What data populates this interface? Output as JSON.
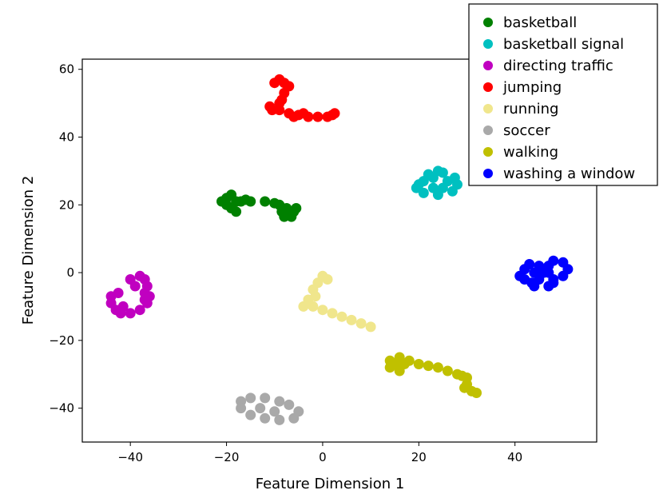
{
  "chart_data": {
    "type": "scatter",
    "xlabel": "Feature Dimension 1",
    "ylabel": "Feature Dimension 2",
    "xlim": [
      -50,
      57
    ],
    "ylim": [
      -50,
      63
    ],
    "xticks": [
      -40,
      -20,
      0,
      20,
      40
    ],
    "yticks": [
      -40,
      -20,
      0,
      20,
      40,
      60
    ],
    "xtick_labels": [
      "−40",
      "−20",
      "0",
      "20",
      "40"
    ],
    "ytick_labels": [
      "−40",
      "−20",
      "0",
      "20",
      "40",
      "60"
    ],
    "grid": false,
    "legend_position": "top-right",
    "series": [
      {
        "name": "basketball",
        "color": "#008000",
        "points": [
          [
            -21,
            21
          ],
          [
            -20,
            22
          ],
          [
            -19,
            23
          ],
          [
            -18,
            21
          ],
          [
            -19,
            19
          ],
          [
            -18,
            18
          ],
          [
            -17,
            21
          ],
          [
            -15,
            21
          ],
          [
            -12,
            21
          ],
          [
            -10,
            20.5
          ],
          [
            -9,
            20
          ],
          [
            -8.5,
            18
          ],
          [
            -7,
            17
          ],
          [
            -6,
            18
          ],
          [
            -5.5,
            19
          ],
          [
            -7.5,
            19
          ],
          [
            -8,
            16.5
          ],
          [
            -6.5,
            16.5
          ],
          [
            -20,
            20
          ],
          [
            -16,
            21.5
          ]
        ]
      },
      {
        "name": "basketball signal",
        "color": "#00c0c0",
        "points": [
          [
            20,
            26
          ],
          [
            22,
            29
          ],
          [
            25,
            29.5
          ],
          [
            27.5,
            28
          ],
          [
            28,
            26
          ],
          [
            27,
            24
          ],
          [
            24,
            23
          ],
          [
            21,
            23.5
          ],
          [
            19.5,
            25
          ],
          [
            21,
            27
          ],
          [
            23,
            28
          ],
          [
            26,
            27
          ],
          [
            25,
            25
          ],
          [
            23,
            25
          ],
          [
            24,
            30
          ]
        ]
      },
      {
        "name": "directing traffic",
        "color": "#c000c0",
        "points": [
          [
            -38,
            -1
          ],
          [
            -37,
            -2
          ],
          [
            -36.5,
            -4
          ],
          [
            -37,
            -6
          ],
          [
            -36,
            -7
          ],
          [
            -36.5,
            -9
          ],
          [
            -38,
            -11
          ],
          [
            -40,
            -12
          ],
          [
            -42,
            -12
          ],
          [
            -43,
            -11
          ],
          [
            -44,
            -9
          ],
          [
            -44,
            -7
          ],
          [
            -42.5,
            -6
          ],
          [
            -39,
            -4
          ],
          [
            -40,
            -2
          ],
          [
            -37,
            -8
          ],
          [
            -41.5,
            -10
          ]
        ]
      },
      {
        "name": "jumping",
        "color": "#ff0000",
        "points": [
          [
            -10,
            56
          ],
          [
            -9,
            57
          ],
          [
            -8,
            56
          ],
          [
            -7,
            55
          ],
          [
            -8,
            53
          ],
          [
            -8.5,
            51
          ],
          [
            -9,
            50
          ],
          [
            -10.5,
            48
          ],
          [
            -11,
            49
          ],
          [
            -9,
            48
          ],
          [
            -7,
            47
          ],
          [
            -5,
            46.5
          ],
          [
            -3,
            46
          ],
          [
            -1,
            46
          ],
          [
            1,
            46
          ],
          [
            2,
            46.5
          ],
          [
            2.5,
            47
          ],
          [
            -6,
            46
          ],
          [
            -4,
            47
          ]
        ]
      },
      {
        "name": "running",
        "color": "#f0e68c",
        "points": [
          [
            0,
            -1
          ],
          [
            -1,
            -3
          ],
          [
            -2,
            -5
          ],
          [
            -1.5,
            -7
          ],
          [
            -3,
            -9
          ],
          [
            -4,
            -10
          ],
          [
            -2,
            -10
          ],
          [
            0,
            -11
          ],
          [
            2,
            -12
          ],
          [
            4,
            -13
          ],
          [
            6,
            -14
          ],
          [
            8,
            -15
          ],
          [
            10,
            -16
          ],
          [
            -3,
            -8
          ],
          [
            1,
            -2
          ]
        ]
      },
      {
        "name": "soccer",
        "color": "#a9a9a9",
        "points": [
          [
            -17,
            -38
          ],
          [
            -15,
            -37
          ],
          [
            -12,
            -37
          ],
          [
            -9,
            -38
          ],
          [
            -7,
            -39
          ],
          [
            -5,
            -41
          ],
          [
            -6,
            -43
          ],
          [
            -9,
            -43.5
          ],
          [
            -12,
            -43
          ],
          [
            -15,
            -42
          ],
          [
            -17,
            -40
          ],
          [
            -13,
            -40
          ],
          [
            -10,
            -41
          ]
        ]
      },
      {
        "name": "walking",
        "color": "#c0c000",
        "points": [
          [
            14,
            -26
          ],
          [
            15,
            -27
          ],
          [
            16,
            -29
          ],
          [
            17,
            -27
          ],
          [
            18,
            -26
          ],
          [
            20,
            -27
          ],
          [
            22,
            -27.5
          ],
          [
            24,
            -28
          ],
          [
            26,
            -29
          ],
          [
            28,
            -30
          ],
          [
            29,
            -30.5
          ],
          [
            30,
            -31
          ],
          [
            30,
            -33
          ],
          [
            31,
            -35
          ],
          [
            32,
            -35.5
          ],
          [
            29.5,
            -34
          ],
          [
            16,
            -25
          ],
          [
            14,
            -28
          ]
        ]
      },
      {
        "name": "washing a window",
        "color": "#0000ff",
        "points": [
          [
            41,
            -1
          ],
          [
            42,
            1
          ],
          [
            43,
            2.5
          ],
          [
            45,
            2
          ],
          [
            46,
            0
          ],
          [
            45,
            -2
          ],
          [
            43.5,
            -3
          ],
          [
            42,
            -2
          ],
          [
            44,
            -4
          ],
          [
            47,
            -4
          ],
          [
            48,
            -2
          ],
          [
            47,
            0
          ],
          [
            47,
            2
          ],
          [
            48,
            3.5
          ],
          [
            50,
            3
          ],
          [
            51,
            1
          ],
          [
            50,
            -1
          ],
          [
            48,
            -3
          ],
          [
            44,
            0
          ]
        ]
      }
    ]
  }
}
